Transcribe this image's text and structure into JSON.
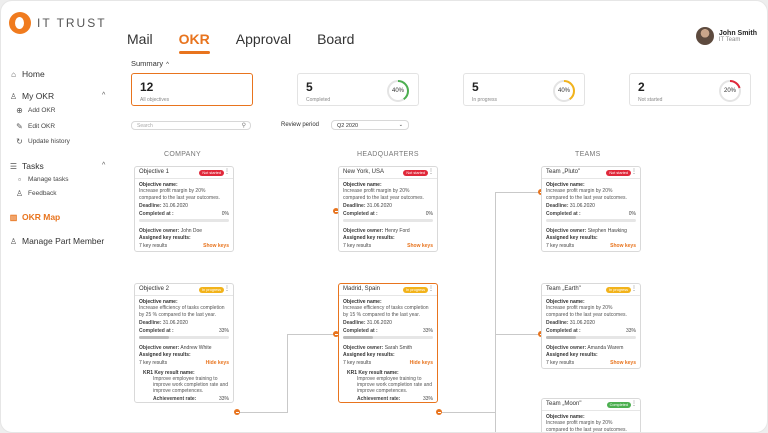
{
  "brand": {
    "name": "IT TRUST"
  },
  "nav": {
    "tabs": [
      "Mail",
      "OKR",
      "Approval",
      "Board"
    ],
    "active": "OKR"
  },
  "user": {
    "name": "John Smith",
    "role": "IT Team"
  },
  "sidebar": {
    "home": "Home",
    "my_okr": "My OKR",
    "add_okr": "Add OKR",
    "edit_okr": "Edit OKR",
    "update_history": "Update history",
    "tasks": "Tasks",
    "manage_tasks": "Manage tasks",
    "feedback": "Feedback",
    "okr_map": "OKR Map",
    "manage_part_member": "Manage Part Member"
  },
  "summary": {
    "title": "Summary",
    "cards": [
      {
        "num": "12",
        "label": "All objectives",
        "pct": ""
      },
      {
        "num": "5",
        "label": "Completed",
        "pct": "40%",
        "value": 0.4,
        "color": "#4caf50"
      },
      {
        "num": "5",
        "label": "In progress",
        "pct": "40%",
        "value": 0.4,
        "color": "#f2b31b"
      },
      {
        "num": "2",
        "label": "Not started",
        "pct": "20%",
        "value": 0.2,
        "color": "#e0283a"
      }
    ]
  },
  "search": {
    "placeholder": "Search"
  },
  "review": {
    "label": "Review period",
    "value": "Q2 2020"
  },
  "columns": {
    "company": "COMPANY",
    "hq": "HEADQUARTERS",
    "teams": "TEAMS"
  },
  "labels": {
    "objective_name": "Objective name:",
    "deadline": "Deadline:",
    "completed_at": "Completed at :",
    "objective_owner": "Objective owner:",
    "assigned_kr": "Assigned key results:",
    "show_keys": "Show keys",
    "hide_keys": "Hide keys",
    "kr_name": "Key result name:",
    "achievement_rate": "Achievement rate:",
    "more": "⋮"
  },
  "cards": {
    "obj1": {
      "title": "Objective 1",
      "badge": "Not started",
      "name": "Increase profit margin by 20% compared to the last year outcomes.",
      "deadline": "31.06.2020",
      "completed": "0%",
      "progress": 0,
      "owner": "John Doe",
      "kr_count": "7 key results"
    },
    "obj2": {
      "title": "Objective 2",
      "badge": "In progress",
      "name": "Increase efficiency of tasks completion by 25 % compared to the last year.",
      "deadline": "31.06.2020",
      "completed": "33%",
      "progress": 0.33,
      "owner": "Andrew White",
      "kr_count": "7 key results",
      "kr_id": "KR1",
      "kr_name": "Improve employee training to improve work completion rate and improve competences.",
      "kr_rate": "33%"
    },
    "ny": {
      "title": "New York, USA",
      "badge": "Not started",
      "name": "Increase profit margin by 20% compared to the last year outcomes.",
      "deadline": "31.06.2020",
      "completed": "0%",
      "progress": 0,
      "owner": "Henry Ford",
      "kr_count": "7 key results"
    },
    "madrid": {
      "title": "Madrid, Spain",
      "badge": "In progress",
      "name": "Increase efficiency of tasks completion by 15 % compared to the last year.",
      "deadline": "31.06.2020",
      "completed": "33%",
      "progress": 0.33,
      "owner": "Sarah Smith",
      "kr_count": "7 key results",
      "kr_id": "KR1",
      "kr_name": "Improve employee training to improve work completion rate and improve competences.",
      "kr_rate": "33%"
    },
    "pluto": {
      "title": "Team „Pluto\"",
      "badge": "Not started",
      "name": "Increase profit margin by 20% compared to the last year outcomes.",
      "deadline": "31.06.2020",
      "completed": "0%",
      "progress": 0,
      "owner": "Stephen Hawking",
      "kr_count": "7 key results"
    },
    "earth": {
      "title": "Team „Earth\"",
      "badge": "In progress",
      "name": "Increase profit margin by 20% compared to the last year outcomes.",
      "deadline": "31.06.2020",
      "completed": "33%",
      "progress": 0.33,
      "owner": "Amanda Warem",
      "kr_count": "7 key results"
    },
    "moon": {
      "title": "Team „Moon\"",
      "badge": "Completed",
      "name": "Increase profit margin by 20% compared to the last year outcomes."
    }
  }
}
